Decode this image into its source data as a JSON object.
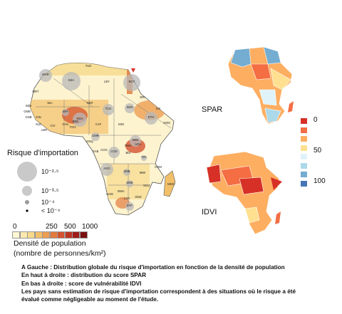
{
  "maps": {
    "left_title": "",
    "spar_label": "SPAR",
    "idvi_label": "IDVI"
  },
  "country_codes": [
    "MAR",
    "DZA",
    "TUN",
    "LBY",
    "EGY",
    "MRT",
    "MLI",
    "NER",
    "TCD",
    "SDN",
    "ERI",
    "ETH",
    "SOM",
    "KEN",
    "NGA",
    "CAF",
    "SSD",
    "COD",
    "COG",
    "GAB",
    "CMR",
    "BFA",
    "SEN",
    "GIN",
    "CIV",
    "GHA",
    "TGO",
    "BEN",
    "AGO",
    "ZMB",
    "ZWE",
    "MWI",
    "MOZ",
    "TZA",
    "UGA",
    "RWA",
    "BDI",
    "NAM",
    "BWA",
    "ZAF",
    "MDG",
    "SWZ",
    "LSO",
    "COM",
    "DJI",
    "SLE",
    "LBR",
    "GMB",
    "GNB",
    "GNQ"
  ],
  "import_risk_legend": {
    "title": "Risque d'importation",
    "items": [
      "10⁻²·⁵",
      "10⁻³·⁵",
      "10⁻⁴",
      "< 10⁻⁴"
    ]
  },
  "density_legend": {
    "tick_labels": [
      "0",
      "250",
      "500",
      "1000"
    ],
    "title_line1": "Densité de population",
    "title_line2": "(nombre de personnes/km²)",
    "colors": [
      "#fff7d4",
      "#fbe9b0",
      "#f6d98b",
      "#f2c06a",
      "#ec9f52",
      "#e27b3f",
      "#d4532f",
      "#bb3322",
      "#9e1d1a",
      "#7a1010"
    ]
  },
  "score_legend": {
    "labels": [
      "0",
      "50",
      "100"
    ],
    "colors": [
      "#d73027",
      "#f46d43",
      "#fdae61",
      "#fee090",
      "#e0f3f8",
      "#abd9e9",
      "#74add1",
      "#4575b4"
    ]
  },
  "caption": {
    "line1": "A Gauche : Distribution globale du risque d'importation en fonction de la densité de population",
    "line2": "En haut à droite : distribution du score SPAR",
    "line3": "En bas à droite : score de vulnérabilité IDVI",
    "line4": "Les pays sans estimation de risque d'importation correspondent à des situations où le risque a été",
    "line5": "évalué comme négligeable au moment de l'étude."
  }
}
